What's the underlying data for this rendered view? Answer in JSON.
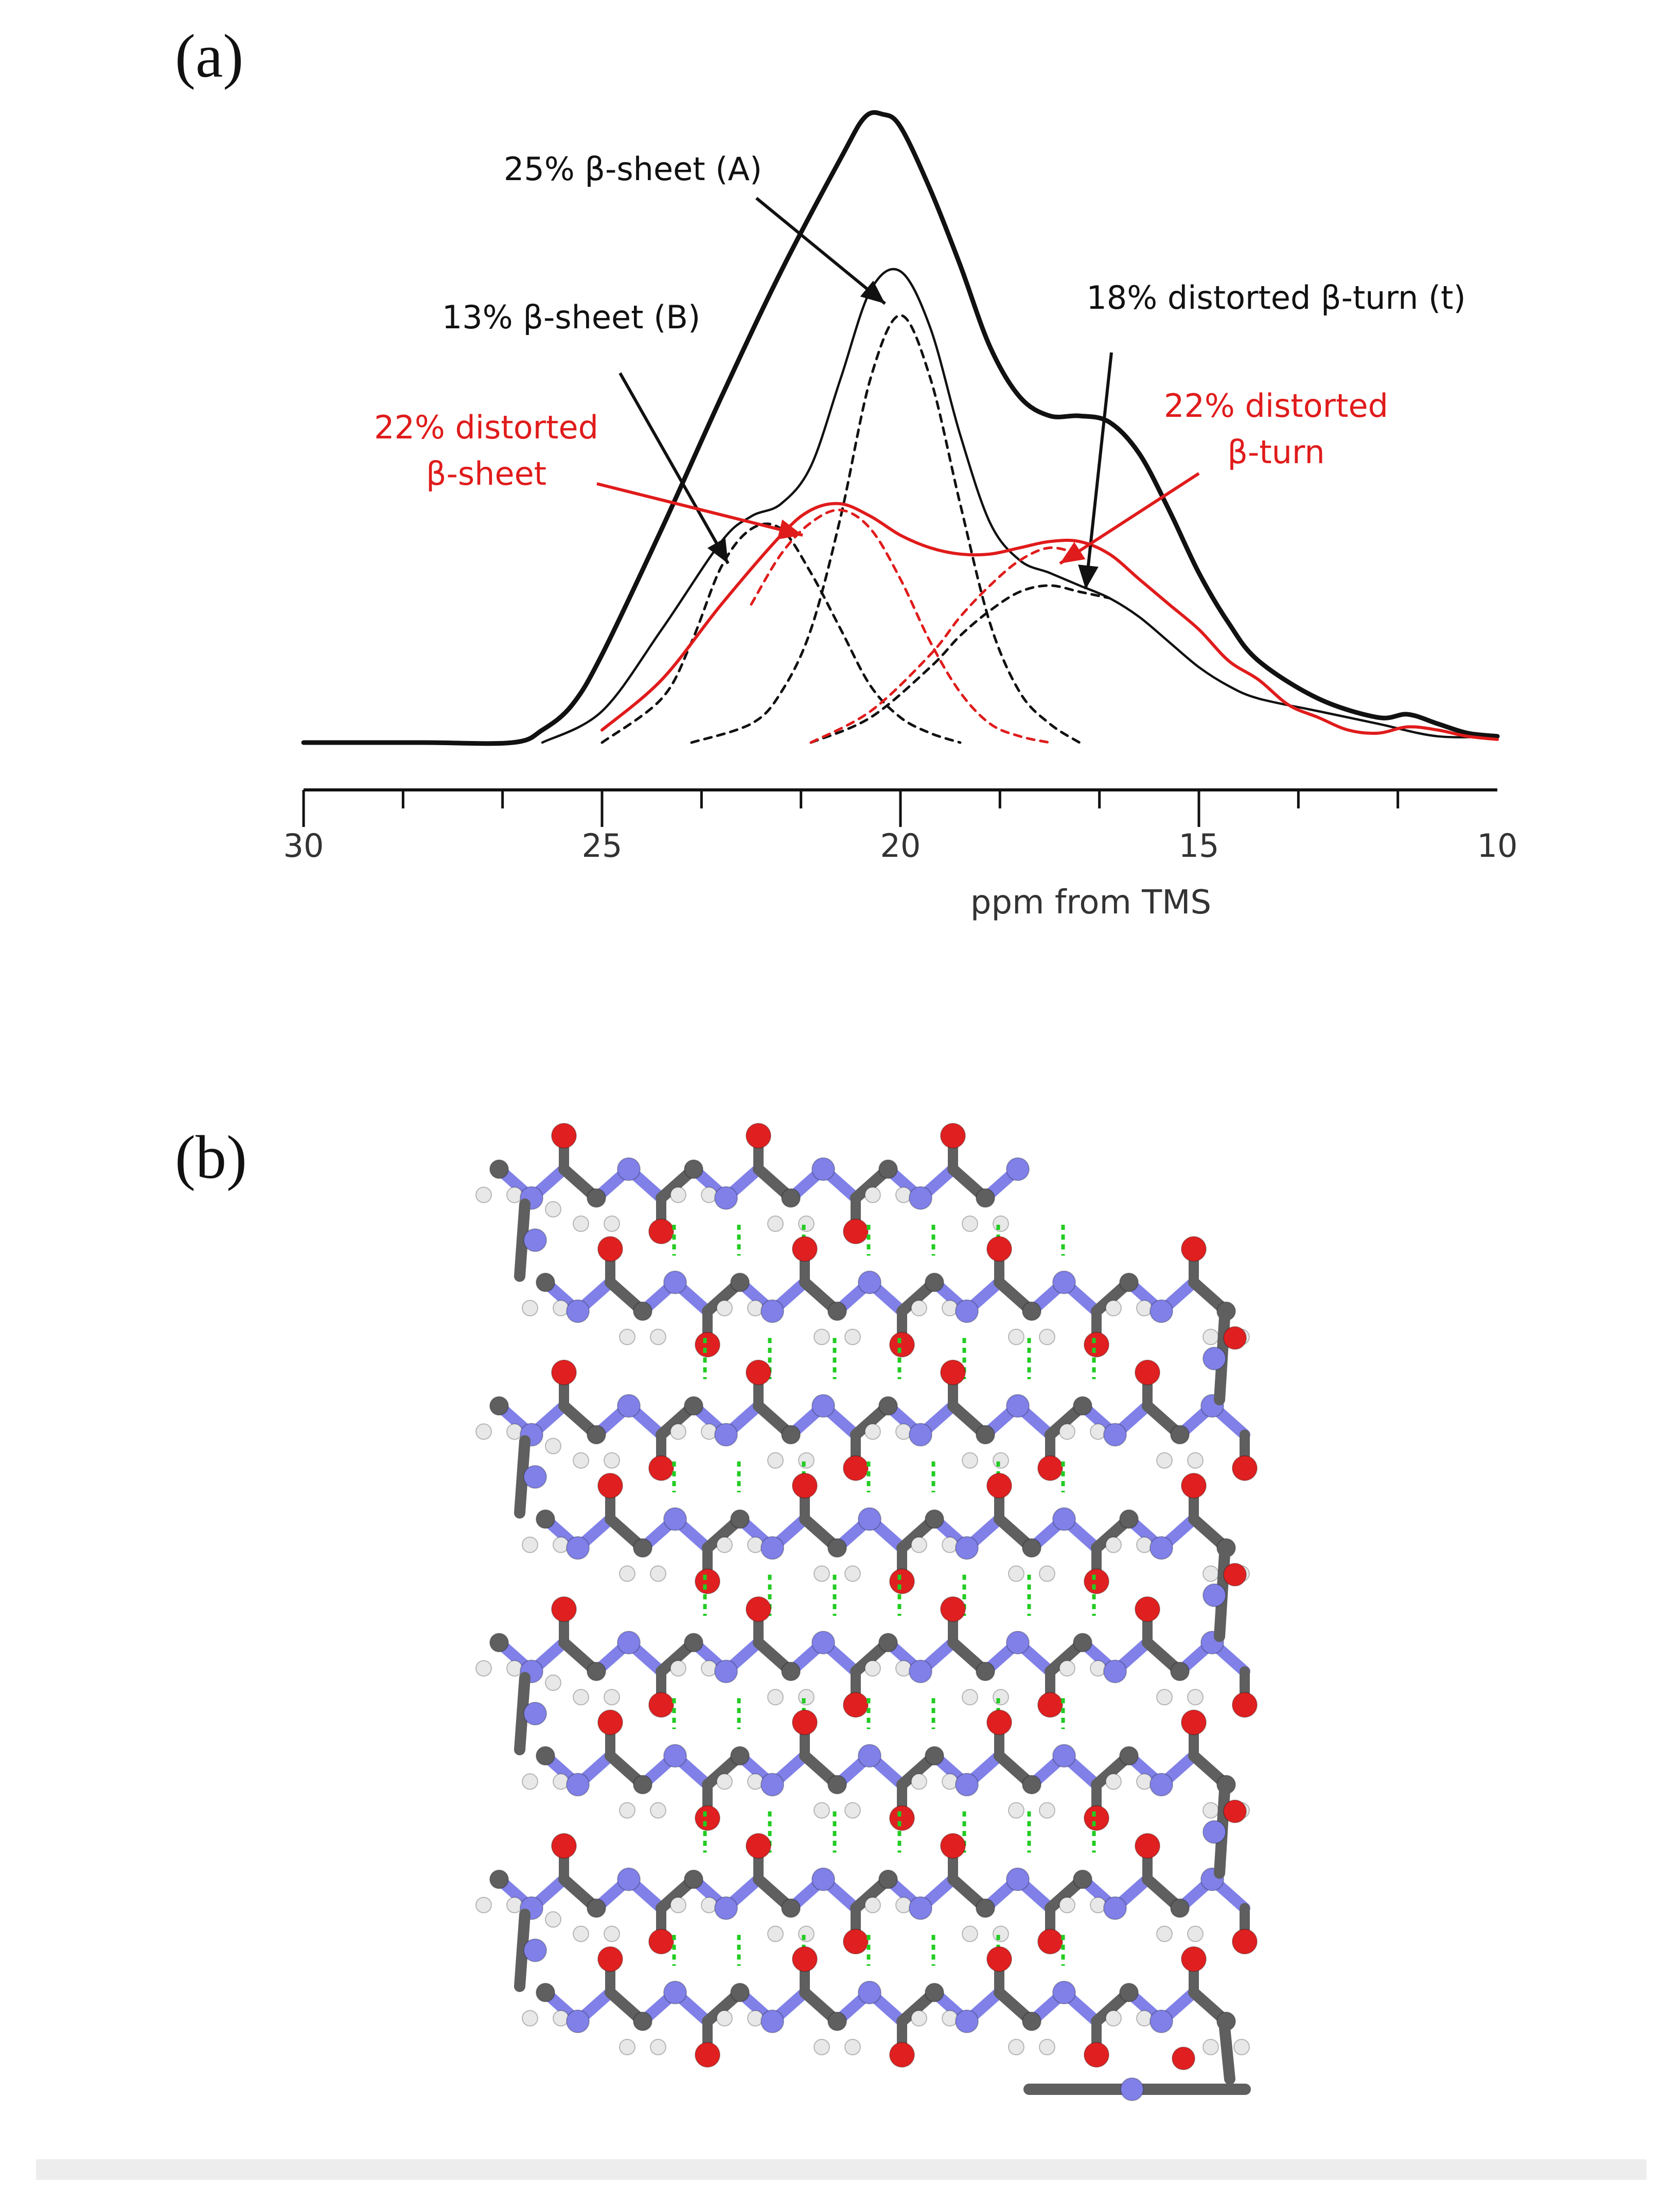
{
  "panel_a_label": "(a)",
  "panel_b_label": "(b)",
  "chart_data": {
    "type": "line",
    "xlabel": "ppm from TMS",
    "xlim": [
      30,
      10
    ],
    "x_reversed": true,
    "x_ticks": [
      30,
      25,
      20,
      15,
      10
    ],
    "series": [
      {
        "role": "experimental",
        "color": "#111111",
        "style": "solid",
        "width": "thick",
        "x": [
          30,
          28,
          26.5,
          26,
          25.5,
          25,
          24,
          23,
          22,
          21,
          20.6,
          20.3,
          20,
          19.5,
          19,
          18.5,
          18,
          17.5,
          17,
          16.5,
          16,
          15.5,
          15,
          14.5,
          14,
          13,
          12,
          11.5,
          11,
          10.5,
          10
        ],
        "y": [
          0,
          0,
          0,
          0.02,
          0.06,
          0.14,
          0.34,
          0.55,
          0.75,
          0.93,
          0.995,
          1.0,
          0.98,
          0.88,
          0.76,
          0.63,
          0.55,
          0.52,
          0.52,
          0.51,
          0.46,
          0.37,
          0.27,
          0.19,
          0.13,
          0.07,
          0.04,
          0.045,
          0.03,
          0.015,
          0.01
        ]
      },
      {
        "role": "fit-sum",
        "color": "#111111",
        "style": "solid",
        "width": "thin",
        "x": [
          26,
          25,
          24,
          23,
          22.5,
          22,
          21.5,
          21,
          20.5,
          20,
          19.5,
          19,
          18.5,
          18,
          17.5,
          17,
          16.5,
          16,
          15.5,
          15,
          14.5,
          14,
          13,
          12,
          11,
          10
        ],
        "y": [
          0,
          0.05,
          0.18,
          0.32,
          0.36,
          0.38,
          0.44,
          0.58,
          0.72,
          0.75,
          0.66,
          0.49,
          0.35,
          0.29,
          0.27,
          0.25,
          0.23,
          0.2,
          0.16,
          0.12,
          0.09,
          0.07,
          0.05,
          0.03,
          0.01,
          0.01
        ]
      },
      {
        "role": "component",
        "name": "25% β-sheet (A)",
        "color": "#111111",
        "style": "dashed",
        "x": [
          23.5,
          22.5,
          22,
          21.5,
          21,
          20.5,
          20,
          19.5,
          19,
          18.5,
          18,
          17.5,
          17
        ],
        "y": [
          0,
          0.03,
          0.08,
          0.18,
          0.36,
          0.58,
          0.68,
          0.58,
          0.38,
          0.19,
          0.08,
          0.03,
          0
        ]
      },
      {
        "role": "component",
        "name": "13% β-sheet (B)",
        "color": "#111111",
        "style": "dashed",
        "x": [
          25,
          24,
          23.5,
          23,
          22.5,
          22,
          21.5,
          21,
          20.5,
          20,
          19.5,
          19
        ],
        "y": [
          0,
          0.07,
          0.16,
          0.28,
          0.34,
          0.34,
          0.27,
          0.18,
          0.09,
          0.04,
          0.015,
          0
        ]
      },
      {
        "role": "component",
        "name": "18% distorted β-turn (t)",
        "color": "#111111",
        "style": "dashed",
        "x": [
          21.5,
          20.5,
          19.5,
          19,
          18.5,
          18,
          17.5,
          17,
          16.5
        ],
        "y": [
          0,
          0.04,
          0.12,
          0.17,
          0.21,
          0.24,
          0.25,
          0.24,
          0.23
        ]
      },
      {
        "role": "component",
        "name": "22% distorted β-sheet",
        "color": "#e01b1b",
        "style": "dashed",
        "x": [
          22.5,
          22,
          21.5,
          21,
          20.5,
          20,
          19.5,
          19,
          18.5,
          18,
          17.5
        ],
        "y": [
          0.22,
          0.3,
          0.35,
          0.37,
          0.34,
          0.26,
          0.16,
          0.08,
          0.03,
          0.01,
          0
        ]
      },
      {
        "role": "component",
        "name": "22% distorted β-turn",
        "color": "#e01b1b",
        "style": "dashed",
        "x": [
          21.5,
          20.5,
          19.5,
          19,
          18.5,
          18,
          17.5,
          17
        ],
        "y": [
          0,
          0.05,
          0.14,
          0.2,
          0.25,
          0.29,
          0.31,
          0.3
        ]
      },
      {
        "role": "fit-distorted",
        "color": "#e01b1b",
        "style": "solid",
        "width": "medium",
        "x": [
          25,
          24,
          23,
          22,
          21.5,
          21,
          20.5,
          20,
          19.5,
          19,
          18.5,
          18,
          17.5,
          17,
          16.5,
          16,
          15.5,
          15,
          14.5,
          14,
          13.5,
          13,
          12.5,
          12,
          11.5,
          11,
          10.5,
          10
        ],
        "y": [
          0.02,
          0.1,
          0.22,
          0.33,
          0.37,
          0.38,
          0.36,
          0.33,
          0.31,
          0.3,
          0.3,
          0.31,
          0.32,
          0.32,
          0.3,
          0.26,
          0.22,
          0.18,
          0.13,
          0.1,
          0.06,
          0.04,
          0.02,
          0.015,
          0.025,
          0.02,
          0.01,
          0.005
        ]
      }
    ],
    "annotations": [
      {
        "text": "25% β-sheet (A)",
        "color": "#111111"
      },
      {
        "text": "13% β-sheet (B)",
        "color": "#111111"
      },
      {
        "text": "18% distorted β-turn (t)",
        "color": "#111111"
      },
      {
        "text_lines": [
          "22% distorted",
          "β-sheet"
        ],
        "color": "#e01b1b"
      },
      {
        "text_lines": [
          "22% distorted",
          "β-turn"
        ],
        "color": "#e01b1b"
      }
    ]
  },
  "atom_colors": {
    "carbon": "#5f5f5f",
    "nitrogen": "#8080e8",
    "oxygen": "#e02020",
    "hydrogen": "#e8e8e8",
    "hbond": "#22cc22"
  }
}
